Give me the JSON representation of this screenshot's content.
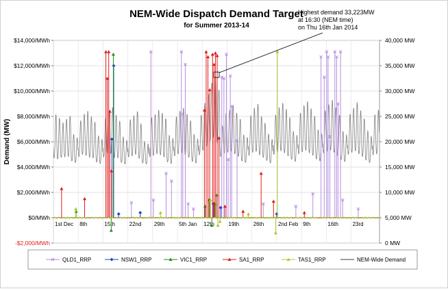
{
  "chart_data": {
    "type": "line",
    "title": "NEM-Wide Dispatch Demand Target",
    "subtitle": "for Summer 2013-14",
    "ylabel": "Demand (MW)",
    "annotation": {
      "lines": [
        "Highest demand 33,223MW",
        "at 16:30 (NEM time)",
        "on Thu 16th Jan 2014"
      ],
      "day": 46,
      "value": 33223
    },
    "x_range": [
      0,
      92
    ],
    "x_ticks": [
      {
        "label": "1st Dec",
        "day": 0
      },
      {
        "label": "8th",
        "day": 7
      },
      {
        "label": "15th",
        "day": 14
      },
      {
        "label": "22nd",
        "day": 21
      },
      {
        "label": "29th",
        "day": 28
      },
      {
        "label": "5th Jan",
        "day": 35
      },
      {
        "label": "12th",
        "day": 42
      },
      {
        "label": "19th",
        "day": 49
      },
      {
        "label": "26th",
        "day": 56
      },
      {
        "label": "2nd Feb",
        "day": 63
      },
      {
        "label": "9th",
        "day": 70
      },
      {
        "label": "16th",
        "day": 77
      },
      {
        "label": "23rd",
        "day": 84
      }
    ],
    "y_left": {
      "min": -2000,
      "max": 14000,
      "ticks": [
        {
          "v": -2000,
          "label": "-$2,000/MWh"
        },
        {
          "v": 0,
          "label": "$0/MWh"
        },
        {
          "v": 2000,
          "label": "$2,000/MWh"
        },
        {
          "v": 4000,
          "label": "$4,000/MWh"
        },
        {
          "v": 6000,
          "label": "$6,000/MWh"
        },
        {
          "v": 8000,
          "label": "$8,000/MWh"
        },
        {
          "v": 10000,
          "label": "$10,000/MWh"
        },
        {
          "v": 12000,
          "label": "$12,000/MWh"
        },
        {
          "v": 14000,
          "label": "$14,000/MWh"
        }
      ]
    },
    "y_right": {
      "min": 0,
      "max": 40000,
      "ticks": [
        {
          "v": 0,
          "label": "0 MW"
        },
        {
          "v": 5000,
          "label": "5,000 MW"
        },
        {
          "v": 10000,
          "label": "10,000 MW"
        },
        {
          "v": 15000,
          "label": "15,000 MW"
        },
        {
          "v": 20000,
          "label": "20,000 MW"
        },
        {
          "v": 25000,
          "label": "25,000 MW"
        },
        {
          "v": 30000,
          "label": "30,000 MW"
        },
        {
          "v": 35000,
          "label": "35,000 MW"
        },
        {
          "v": 40000,
          "label": "40,000 MW"
        }
      ]
    },
    "demand": {
      "name": "NEM-Wide Demand",
      "color": "#7f7f7f",
      "daily_peak_mw": [
        25500,
        24800,
        23900,
        24600,
        25200,
        21500,
        20800,
        24300,
        25600,
        26200,
        25100,
        24000,
        21200,
        20500,
        24800,
        26300,
        26900,
        25400,
        24200,
        21000,
        20300,
        24500,
        25300,
        26100,
        23600,
        20100,
        19600,
        24900,
        25500,
        26400,
        25800,
        24700,
        21300,
        20700,
        25100,
        26200,
        26800,
        25600,
        24300,
        21500,
        20600,
        25400,
        27800,
        29600,
        31800,
        33223,
        30400,
        23200,
        25700,
        26400,
        27300,
        25800,
        24600,
        21400,
        20900,
        25300,
        26800,
        27600,
        25100,
        23800,
        21600,
        20500,
        25400,
        26900,
        27800,
        26600,
        24900,
        22100,
        21300,
        25800,
        27300,
        28100,
        26700,
        25200,
        22400,
        21600,
        26300,
        27500,
        28400,
        26900,
        25400,
        22100,
        21400,
        25600,
        26800,
        27900,
        26300,
        24700,
        22200,
        21100,
        25500,
        26400
      ],
      "daily_min_mw": [
        16800,
        16600,
        16900,
        17000,
        17100,
        16200,
        15900,
        17100,
        17500,
        17300,
        16900,
        16800,
        16000,
        15700,
        17000,
        17600,
        17700,
        16900,
        16800,
        15900,
        15600,
        17000,
        17200,
        17500,
        16700,
        15800,
        15600,
        17100,
        17300,
        17600,
        17400,
        17000,
        16000,
        15700,
        17200,
        17600,
        17800,
        17300,
        16900,
        16100,
        15800,
        17400,
        18300,
        19100,
        20200,
        20900,
        19600,
        17100,
        17700,
        17900,
        18100,
        17600,
        17100,
        16200,
        15900,
        17300,
        17900,
        18100,
        17400,
        16900,
        16300,
        15800,
        17500,
        17900,
        18200,
        17800,
        17200,
        16500,
        16100,
        17600,
        18000,
        18300,
        17800,
        17300,
        16600,
        16200,
        17800,
        18100,
        18400,
        17900,
        17300,
        16500,
        16100,
        17500,
        17900,
        18200,
        17600,
        17100,
        16400,
        15900,
        17400,
        17600
      ]
    },
    "price_series": [
      {
        "name": "QLD1_RRP",
        "color": "#b58ee0",
        "marker": "x",
        "spikes": [
          [
            27.5,
            13100
          ],
          [
            28.2,
            1400
          ],
          [
            31.8,
            3500
          ],
          [
            33.3,
            2900
          ],
          [
            36.1,
            13100
          ],
          [
            36.5,
            8200
          ],
          [
            37.2,
            12100
          ],
          [
            38.0,
            1100
          ],
          [
            47.5,
            11100
          ],
          [
            48.1,
            11000
          ],
          [
            48.8,
            12900
          ],
          [
            49.3,
            4600
          ],
          [
            49.9,
            11200
          ],
          [
            50.3,
            8800
          ],
          [
            51.8,
            6100
          ],
          [
            73.2,
            1900
          ],
          [
            75.5,
            12700
          ],
          [
            76.4,
            11100
          ],
          [
            77.1,
            13100
          ],
          [
            77.5,
            12700
          ],
          [
            78.0,
            6400
          ],
          [
            79.4,
            13100
          ],
          [
            79.9,
            12700
          ],
          [
            80.3,
            9000
          ],
          [
            81.0,
            13100
          ],
          [
            81.6,
            1400
          ],
          [
            22.0,
            1200
          ],
          [
            39.5,
            700
          ],
          [
            59.2,
            1100
          ],
          [
            68.4,
            900
          ],
          [
            86.0,
            700
          ]
        ]
      },
      {
        "name": "NSW1_RRP",
        "color": "#1f3fd6",
        "marker": "diamond",
        "spikes": [
          [
            17.0,
            12000
          ],
          [
            16.5,
            6200
          ],
          [
            18.4,
            300
          ],
          [
            24.5,
            400
          ],
          [
            45.1,
            1100
          ],
          [
            47.2,
            800
          ],
          [
            63.0,
            300
          ]
        ]
      },
      {
        "name": "VIC1_RRP",
        "color": "#1f8a1f",
        "marker": "triangle",
        "spikes": [
          [
            16.3,
            -1000
          ],
          [
            16.9,
            12900
          ],
          [
            42.8,
            900
          ],
          [
            43.9,
            1400
          ],
          [
            44.7,
            -600
          ],
          [
            45.5,
            1100
          ],
          [
            46.1,
            1800
          ],
          [
            6.4,
            500
          ]
        ]
      },
      {
        "name": "SA1_RRP",
        "color": "#e01b1b",
        "marker": "triangle",
        "spikes": [
          [
            2.3,
            2300
          ],
          [
            8.8,
            1500
          ],
          [
            14.8,
            13100
          ],
          [
            15.2,
            11000
          ],
          [
            15.6,
            13100
          ],
          [
            15.9,
            8400
          ],
          [
            16.4,
            3700
          ],
          [
            42.6,
            8500
          ],
          [
            43.1,
            13100
          ],
          [
            43.6,
            12700
          ],
          [
            44.1,
            10100
          ],
          [
            44.9,
            12900
          ],
          [
            45.3,
            12100
          ],
          [
            45.7,
            13000
          ],
          [
            46.2,
            12800
          ],
          [
            46.7,
            6300
          ],
          [
            58.6,
            3500
          ],
          [
            62.1,
            1300
          ],
          [
            48.4,
            900
          ],
          [
            53.5,
            500
          ],
          [
            70.8,
            400
          ]
        ]
      },
      {
        "name": "TAS1_RRP",
        "color": "#a8cc2a",
        "marker": "triangle",
        "spikes": [
          [
            63.2,
            13100
          ],
          [
            62.7,
            -1200
          ],
          [
            44.3,
            1400
          ],
          [
            46.4,
            -600
          ],
          [
            47.0,
            -300
          ],
          [
            6.3,
            700
          ],
          [
            30.2,
            400
          ],
          [
            55.0,
            300
          ]
        ]
      }
    ],
    "legend": {
      "placement": "bottom",
      "items": [
        {
          "name": "QLD1_RRP",
          "color": "#b58ee0",
          "marker": "x"
        },
        {
          "name": "NSW1_RRP",
          "color": "#1f3fd6",
          "marker": "diamond"
        },
        {
          "name": "VIC1_RRP",
          "color": "#1f8a1f",
          "marker": "triangle"
        },
        {
          "name": "SA1_RRP",
          "color": "#e01b1b",
          "marker": "triangle"
        },
        {
          "name": "TAS1_RRP",
          "color": "#a8cc2a",
          "marker": "triangle"
        },
        {
          "name": "NEM-Wide Demand",
          "color": "#7f7f7f",
          "marker": "none"
        }
      ]
    },
    "grid": true
  }
}
